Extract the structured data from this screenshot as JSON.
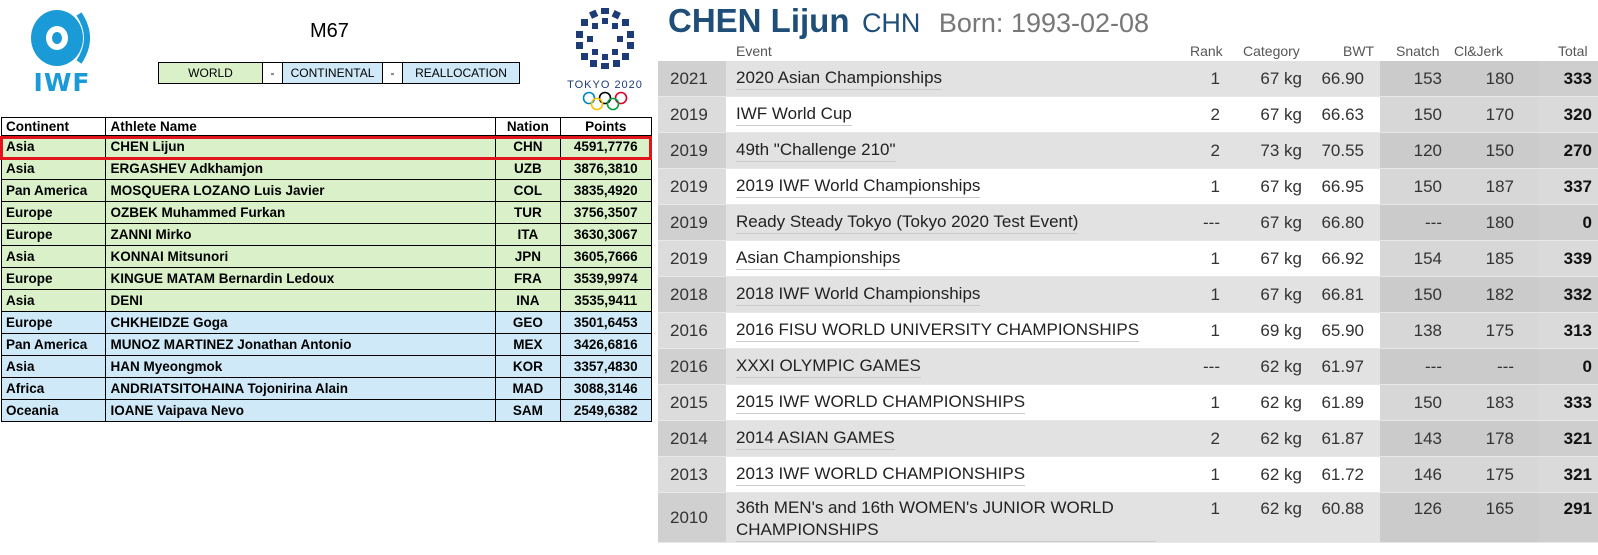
{
  "left_panel": {
    "federation_logo_text": "IWF",
    "category": "M67",
    "legend": {
      "world": "WORLD",
      "dash1": "-",
      "continental": "CONTINENTAL",
      "dash2": "-",
      "reallocation": "REALLOCATION"
    },
    "games_logo_text": "TOKYO 2020",
    "colors": {
      "world": "#d9f0c8",
      "continental": "#cfe9f8",
      "highlight": "#e0141a",
      "iwf_blue": "#1a9bd7"
    },
    "table": {
      "headers": [
        "Continent",
        "Athlete Name",
        "Nation",
        "Points"
      ],
      "rows": [
        {
          "continent": "Asia",
          "name": "CHEN Lijun",
          "nation": "CHN",
          "points": "4591,7776",
          "quota": "world"
        },
        {
          "continent": "Asia",
          "name": "ERGASHEV Adkhamjon",
          "nation": "UZB",
          "points": "3876,3810",
          "quota": "world"
        },
        {
          "continent": "Pan America",
          "name": "MOSQUERA LOZANO Luis Javier",
          "nation": "COL",
          "points": "3835,4920",
          "quota": "world"
        },
        {
          "continent": "Europe",
          "name": "OZBEK Muhammed Furkan",
          "nation": "TUR",
          "points": "3756,3507",
          "quota": "world"
        },
        {
          "continent": "Europe",
          "name": "ZANNI Mirko",
          "nation": "ITA",
          "points": "3630,3067",
          "quota": "world"
        },
        {
          "continent": "Asia",
          "name": "KONNAI Mitsunori",
          "nation": "JPN",
          "points": "3605,7666",
          "quota": "world"
        },
        {
          "continent": "Europe",
          "name": "KINGUE MATAM Bernardin Ledoux",
          "nation": "FRA",
          "points": "3539,9974",
          "quota": "world"
        },
        {
          "continent": "Asia",
          "name": "DENI",
          "nation": "INA",
          "points": "3535,9411",
          "quota": "world"
        },
        {
          "continent": "Europe",
          "name": "CHKHEIDZE Goga",
          "nation": "GEO",
          "points": "3501,6453",
          "quota": "continental"
        },
        {
          "continent": "Pan America",
          "name": "MUNOZ MARTINEZ Jonathan Antonio",
          "nation": "MEX",
          "points": "3426,6816",
          "quota": "continental"
        },
        {
          "continent": "Asia",
          "name": "HAN Myeongmok",
          "nation": "KOR",
          "points": "3357,4830",
          "quota": "continental"
        },
        {
          "continent": "Africa",
          "name": "ANDRIATSITOHAINA Tojonirina Alain",
          "nation": "MAD",
          "points": "3088,3146",
          "quota": "continental"
        },
        {
          "continent": "Oceania",
          "name": "IOANE Vaipava Nevo",
          "nation": "SAM",
          "points": "2549,6382",
          "quota": "continental"
        }
      ]
    }
  },
  "right_panel": {
    "athlete_name": "CHEN Lijun",
    "nation": "CHN",
    "born_label": "Born:",
    "born_date": "1993-02-08",
    "colors": {
      "name": "#1f4e79",
      "born": "#777777"
    },
    "headers": {
      "event": "Event",
      "rank": "Rank",
      "category": "Category",
      "bwt": "BWT",
      "snatch": "Snatch",
      "cj": "Cl&Jerk",
      "total": "Total"
    },
    "results": [
      {
        "year": "2021",
        "event": "2020 Asian Championships",
        "rank": "1",
        "category": "67 kg",
        "bwt": "66.90",
        "snatch": "153",
        "cj": "180",
        "total": "333"
      },
      {
        "year": "2019",
        "event": "IWF World Cup",
        "rank": "2",
        "category": "67 kg",
        "bwt": "66.63",
        "snatch": "150",
        "cj": "170",
        "total": "320"
      },
      {
        "year": "2019",
        "event": "49th \"Challenge 210\"",
        "rank": "2",
        "category": "73 kg",
        "bwt": "70.55",
        "snatch": "120",
        "cj": "150",
        "total": "270"
      },
      {
        "year": "2019",
        "event": "2019 IWF World Championships",
        "rank": "1",
        "category": "67 kg",
        "bwt": "66.95",
        "snatch": "150",
        "cj": "187",
        "total": "337"
      },
      {
        "year": "2019",
        "event": "Ready Steady Tokyo (Tokyo 2020 Test Event)",
        "rank": "---",
        "category": "67 kg",
        "bwt": "66.80",
        "snatch": "---",
        "cj": "180",
        "total": "0"
      },
      {
        "year": "2019",
        "event": "Asian Championships",
        "rank": "1",
        "category": "67 kg",
        "bwt": "66.92",
        "snatch": "154",
        "cj": "185",
        "total": "339"
      },
      {
        "year": "2018",
        "event": "2018 IWF World Championships",
        "rank": "1",
        "category": "67 kg",
        "bwt": "66.81",
        "snatch": "150",
        "cj": "182",
        "total": "332"
      },
      {
        "year": "2016",
        "event": "2016 FISU WORLD UNIVERSITY CHAMPIONSHIPS",
        "rank": "1",
        "category": "69 kg",
        "bwt": "65.90",
        "snatch": "138",
        "cj": "175",
        "total": "313"
      },
      {
        "year": "2016",
        "event": "XXXI OLYMPIC GAMES",
        "rank": "---",
        "category": "62 kg",
        "bwt": "61.97",
        "snatch": "---",
        "cj": "---",
        "total": "0"
      },
      {
        "year": "2015",
        "event": "2015 IWF WORLD CHAMPIONSHIPS",
        "rank": "1",
        "category": "62 kg",
        "bwt": "61.89",
        "snatch": "150",
        "cj": "183",
        "total": "333"
      },
      {
        "year": "2014",
        "event": "2014 ASIAN GAMES",
        "rank": "2",
        "category": "62 kg",
        "bwt": "61.87",
        "snatch": "143",
        "cj": "178",
        "total": "321"
      },
      {
        "year": "2013",
        "event": "2013 IWF WORLD CHAMPIONSHIPS",
        "rank": "1",
        "category": "62 kg",
        "bwt": "61.72",
        "snatch": "146",
        "cj": "175",
        "total": "321"
      },
      {
        "year": "2010",
        "event": "36th MEN's and 16th WOMEN's JUNIOR WORLD CHAMPIONSHIPS",
        "rank": "1",
        "category": "62 kg",
        "bwt": "60.88",
        "snatch": "126",
        "cj": "165",
        "total": "291"
      }
    ]
  }
}
